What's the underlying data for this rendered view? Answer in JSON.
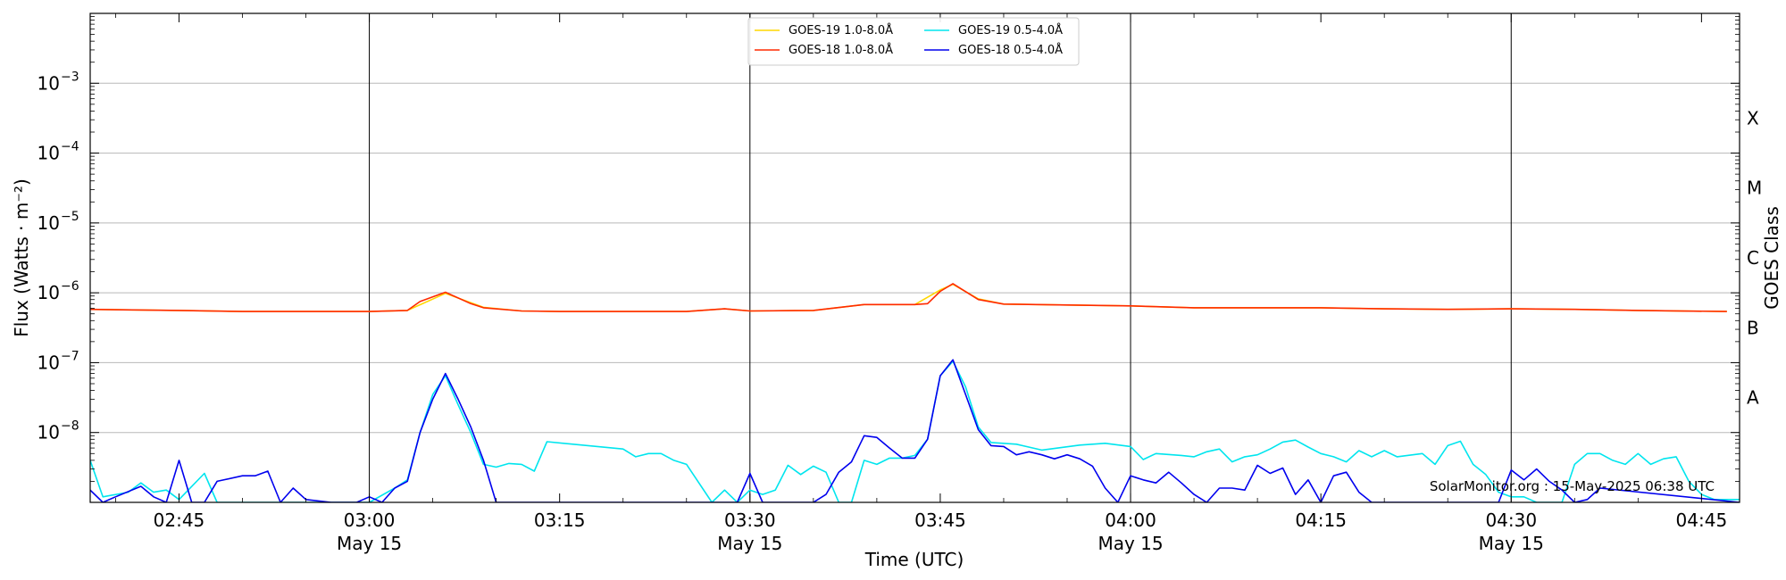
{
  "chart_data": {
    "type": "line",
    "title": "",
    "xlabel": "Time (UTC)",
    "ylabel": "Flux (Watts · m⁻²)",
    "ylabel_right": "GOES Class",
    "yscale": "log",
    "xlim": [
      "02:38",
      "04:48"
    ],
    "ylim": [
      1e-09,
      0.01
    ],
    "grid_y": true,
    "legend": {
      "placement": "top-center",
      "columns": 2
    },
    "credit": "SolarMonitor.org : 15-May-2025 06:38 UTC",
    "x_ticks": [
      {
        "t": "02:45",
        "label": "02:45",
        "date": ""
      },
      {
        "t": "03:00",
        "label": "03:00",
        "date": "May 15"
      },
      {
        "t": "03:15",
        "label": "03:15",
        "date": ""
      },
      {
        "t": "03:30",
        "label": "03:30",
        "date": "May 15"
      },
      {
        "t": "03:45",
        "label": "03:45",
        "date": ""
      },
      {
        "t": "04:00",
        "label": "04:00",
        "date": "May 15"
      },
      {
        "t": "04:15",
        "label": "04:15",
        "date": ""
      },
      {
        "t": "04:30",
        "label": "04:30",
        "date": "May 15"
      },
      {
        "t": "04:45",
        "label": "04:45",
        "date": ""
      }
    ],
    "vlines": [
      "03:00",
      "03:30",
      "04:00",
      "04:30"
    ],
    "y_ticks": [
      {
        "value": 1e-08,
        "label": "10",
        "exp": "−8"
      },
      {
        "value": 1e-07,
        "label": "10",
        "exp": "−7"
      },
      {
        "value": 1e-06,
        "label": "10",
        "exp": "−6"
      },
      {
        "value": 1e-05,
        "label": "10",
        "exp": "−5"
      },
      {
        "value": 0.0001,
        "label": "10",
        "exp": "−4"
      },
      {
        "value": 0.001,
        "label": "10",
        "exp": "−3"
      }
    ],
    "goes_classes": [
      {
        "label": "A",
        "value": 3.16e-08
      },
      {
        "label": "B",
        "value": 3.16e-07
      },
      {
        "label": "C",
        "value": 3.16e-06
      },
      {
        "label": "M",
        "value": 3.16e-05
      },
      {
        "label": "X",
        "value": 0.000316
      }
    ],
    "series": [
      {
        "name": "GOES-19 1.0-8.0Å",
        "color": "#ffd700",
        "x": [
          "02:38",
          "02:45",
          "02:50",
          "02:55",
          "03:00",
          "03:03",
          "03:06",
          "03:09",
          "03:12",
          "03:15",
          "03:20",
          "03:25",
          "03:28",
          "03:30",
          "03:35",
          "03:39",
          "03:43",
          "03:45",
          "03:46",
          "03:48",
          "03:50",
          "03:55",
          "04:00",
          "04:05",
          "04:10",
          "04:15",
          "04:20",
          "04:25",
          "04:30",
          "04:35",
          "04:40",
          "04:47"
        ],
        "y": [
          5.8e-07,
          5.6e-07,
          5.4e-07,
          5.4e-07,
          5.4e-07,
          5.6e-07,
          9.8e-07,
          6.2e-07,
          5.5e-07,
          5.4e-07,
          5.4e-07,
          5.4e-07,
          5.9e-07,
          5.5e-07,
          5.6e-07,
          6.8e-07,
          6.8e-07,
          1.1e-06,
          1.32e-06,
          8.2e-07,
          6.9e-07,
          6.7e-07,
          6.5e-07,
          6.1e-07,
          6.1e-07,
          6.1e-07,
          5.9e-07,
          5.8e-07,
          5.9e-07,
          5.8e-07,
          5.6e-07,
          5.4e-07
        ]
      },
      {
        "name": "GOES-18 1.0-8.0Å",
        "color": "#ff2a00",
        "x": [
          "02:38",
          "02:45",
          "02:50",
          "02:55",
          "03:00",
          "03:03",
          "03:04",
          "03:06",
          "03:08",
          "03:09",
          "03:12",
          "03:15",
          "03:20",
          "03:25",
          "03:28",
          "03:30",
          "03:35",
          "03:39",
          "03:43",
          "03:44",
          "03:45",
          "03:46",
          "03:48",
          "03:50",
          "03:55",
          "04:00",
          "04:05",
          "04:10",
          "04:15",
          "04:20",
          "04:25",
          "04:30",
          "04:35",
          "04:40",
          "04:47"
        ],
        "y": [
          5.8e-07,
          5.6e-07,
          5.4e-07,
          5.4e-07,
          5.4e-07,
          5.6e-07,
          7.5e-07,
          1.02e-06,
          7e-07,
          6.1e-07,
          5.5e-07,
          5.4e-07,
          5.4e-07,
          5.4e-07,
          5.9e-07,
          5.5e-07,
          5.6e-07,
          6.8e-07,
          6.8e-07,
          7e-07,
          1.05e-06,
          1.35e-06,
          8e-07,
          6.9e-07,
          6.7e-07,
          6.5e-07,
          6.1e-07,
          6.1e-07,
          6.1e-07,
          5.9e-07,
          5.8e-07,
          5.9e-07,
          5.8e-07,
          5.6e-07,
          5.4e-07
        ]
      },
      {
        "name": "GOES-19 0.5-4.0Å",
        "color": "#00e5ee",
        "x": [
          "02:38",
          "02:39",
          "02:41",
          "02:42",
          "02:43",
          "02:44",
          "02:45",
          "02:47",
          "02:48",
          "02:49",
          "02:51",
          "02:55",
          "02:58",
          "03:00",
          "03:02",
          "03:03",
          "03:04",
          "03:05",
          "03:06",
          "03:07",
          "03:08",
          "03:09",
          "03:10",
          "03:11",
          "03:12",
          "03:13",
          "03:14",
          "03:20",
          "03:21",
          "03:22",
          "03:23",
          "03:24",
          "03:25",
          "03:27",
          "03:28",
          "03:29",
          "03:30",
          "03:31",
          "03:32",
          "03:33",
          "03:34",
          "03:35",
          "03:36",
          "03:37",
          "03:38",
          "03:39",
          "03:40",
          "03:41",
          "03:42",
          "03:43",
          "03:44",
          "03:45",
          "03:46",
          "03:47",
          "03:48",
          "03:49",
          "03:51",
          "03:53",
          "03:56",
          "03:58",
          "04:00",
          "04:01",
          "04:02",
          "04:04",
          "04:05",
          "04:06",
          "04:07",
          "04:08",
          "04:09",
          "04:10",
          "04:11",
          "04:12",
          "04:13",
          "04:14",
          "04:15",
          "04:16",
          "04:17",
          "04:18",
          "04:19",
          "04:20",
          "04:21",
          "04:23",
          "04:24",
          "04:25",
          "04:26",
          "04:27",
          "04:28",
          "04:29",
          "04:30",
          "04:31",
          "04:32",
          "04:33",
          "04:34",
          "04:35",
          "04:36",
          "04:37",
          "04:38",
          "04:39",
          "04:40",
          "04:41",
          "04:42",
          "04:43",
          "04:44",
          "04:45",
          "04:46",
          "04:48"
        ],
        "y": [
          4e-09,
          1.2e-09,
          1.4e-09,
          1.9e-09,
          1.4e-09,
          1.5e-09,
          1.1e-09,
          2.6e-09,
          1e-09,
          1e-09,
          1e-09,
          1e-09,
          1e-09,
          1e-09,
          1.6e-09,
          2.1e-09,
          1e-08,
          3.5e-08,
          6.5e-08,
          2.5e-08,
          1e-08,
          3.5e-09,
          3.2e-09,
          3.6e-09,
          3.5e-09,
          2.8e-09,
          7.4e-09,
          5.8e-09,
          4.5e-09,
          5e-09,
          5e-09,
          4e-09,
          3.5e-09,
          1e-09,
          1.5e-09,
          1e-09,
          1.5e-09,
          1.3e-09,
          1.5e-09,
          3.4e-09,
          2.5e-09,
          3.3e-09,
          2.7e-09,
          1e-09,
          1e-09,
          4e-09,
          3.5e-09,
          4.3e-09,
          4.3e-09,
          4.7e-09,
          8e-09,
          6.5e-08,
          1.05e-07,
          4.5e-08,
          1.2e-08,
          7.2e-09,
          6.8e-09,
          5.6e-09,
          6.6e-09,
          7e-09,
          6.3e-09,
          4.1e-09,
          5e-09,
          4.7e-09,
          4.5e-09,
          5.3e-09,
          5.8e-09,
          3.8e-09,
          4.5e-09,
          4.8e-09,
          5.8e-09,
          7.3e-09,
          7.8e-09,
          6.2e-09,
          5e-09,
          4.5e-09,
          3.8e-09,
          5.5e-09,
          4.5e-09,
          5.5e-09,
          4.5e-09,
          5e-09,
          3.5e-09,
          6.5e-09,
          7.5e-09,
          3.5e-09,
          2.5e-09,
          1.4e-09,
          1.2e-09,
          1.2e-09,
          1e-09,
          1e-09,
          1e-09,
          3.5e-09,
          5e-09,
          5e-09,
          4e-09,
          3.5e-09,
          5e-09,
          3.5e-09,
          4.2e-09,
          4.5e-09,
          2e-09,
          1.3e-09,
          1.1e-09,
          1.1e-09
        ]
      },
      {
        "name": "GOES-18 0.5-4.0Å",
        "color": "#0000ee",
        "x": [
          "02:38",
          "02:39",
          "02:40",
          "02:42",
          "02:43",
          "02:44",
          "02:45",
          "02:46",
          "02:47",
          "02:48",
          "02:50",
          "02:51",
          "02:52",
          "02:53",
          "02:54",
          "02:55",
          "02:57",
          "02:59",
          "03:00",
          "03:01",
          "03:02",
          "03:03",
          "03:04",
          "03:05",
          "03:06",
          "03:07",
          "03:08",
          "03:09",
          "03:10",
          "03:29",
          "03:30",
          "03:31",
          "03:35",
          "03:36",
          "03:37",
          "03:38",
          "03:39",
          "03:40",
          "03:41",
          "03:42",
          "03:43",
          "03:44",
          "03:45",
          "03:46",
          "03:47",
          "03:48",
          "03:49",
          "03:50",
          "03:51",
          "03:52",
          "03:53",
          "03:54",
          "03:55",
          "03:56",
          "03:57",
          "03:58",
          "03:59",
          "04:00",
          "04:01",
          "04:02",
          "04:03",
          "04:04",
          "04:05",
          "04:06",
          "04:07",
          "04:08",
          "04:09",
          "04:10",
          "04:11",
          "04:12",
          "04:13",
          "04:14",
          "04:15",
          "04:16",
          "04:17",
          "04:18",
          "04:19",
          "04:29",
          "04:30",
          "04:31",
          "04:32",
          "04:33",
          "04:34",
          "04:35",
          "04:36",
          "04:37",
          "04:48"
        ],
        "y": [
          1.5e-09,
          1e-09,
          1.2e-09,
          1.7e-09,
          1.2e-09,
          1e-09,
          4e-09,
          1e-09,
          1e-09,
          2e-09,
          2.4e-09,
          2.4e-09,
          2.8e-09,
          1e-09,
          1.6e-09,
          1.1e-09,
          1e-09,
          1e-09,
          1.2e-09,
          1e-09,
          1.6e-09,
          2e-09,
          1e-08,
          3e-08,
          7e-08,
          3e-08,
          1.2e-08,
          4e-09,
          1e-09,
          1e-09,
          2.6e-09,
          1e-09,
          1e-09,
          1.3e-09,
          2.7e-09,
          3.8e-09,
          9e-09,
          8.5e-09,
          6e-09,
          4.3e-09,
          4.3e-09,
          8e-09,
          6.5e-08,
          1.1e-07,
          3.5e-08,
          1.1e-08,
          6.5e-09,
          6.3e-09,
          4.8e-09,
          5.3e-09,
          4.8e-09,
          4.2e-09,
          4.8e-09,
          4.2e-09,
          3.3e-09,
          1.6e-09,
          1e-09,
          2.4e-09,
          2.1e-09,
          1.9e-09,
          2.7e-09,
          1.9e-09,
          1.3e-09,
          1e-09,
          1.6e-09,
          1.6e-09,
          1.5e-09,
          3.4e-09,
          2.6e-09,
          3.1e-09,
          1.3e-09,
          2.1e-09,
          1e-09,
          2.4e-09,
          2.7e-09,
          1.4e-09,
          1e-09,
          1e-09,
          2.9e-09,
          2.1e-09,
          3e-09,
          2e-09,
          1.5e-09,
          1e-09,
          1.1e-09,
          1.6e-09,
          1e-09
        ]
      }
    ]
  }
}
